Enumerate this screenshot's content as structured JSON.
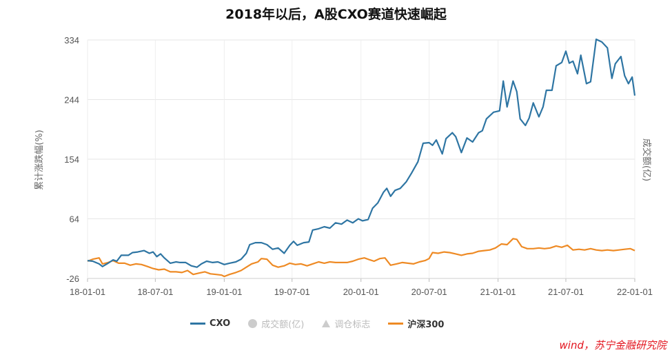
{
  "title": "2018年以后，A股CXO赛道快速崛起",
  "source": "wind，苏宁金融研究院",
  "chart_data": {
    "type": "line",
    "ylabel_left": "累计涨跌幅(%)",
    "ylabel_right": "成交额(亿)",
    "yticks": [
      -26,
      64,
      154,
      244,
      334
    ],
    "ylim": [
      -26,
      334
    ],
    "xticks": [
      "18-01-01",
      "18-07-01",
      "19-01-01",
      "19-07-01",
      "20-01-01",
      "20-07-01",
      "21-01-01",
      "21-07-01",
      "22-01-01"
    ],
    "xlim": [
      "2018-01-01",
      "2022-01-01"
    ],
    "grid": true,
    "legend_position": "bottom",
    "legend": [
      {
        "name": "CXO",
        "color": "#2e75a3",
        "symbol": "line",
        "active": true
      },
      {
        "name": "成交额(亿)",
        "color": "#cccccc",
        "symbol": "circle",
        "active": false
      },
      {
        "name": "调仓标志",
        "color": "#cccccc",
        "symbol": "triangle",
        "active": false
      },
      {
        "name": "沪深300",
        "color": "#ee8a24",
        "symbol": "line",
        "active": true
      }
    ],
    "series": [
      {
        "name": "CXO",
        "color": "#2e75a3",
        "points": [
          [
            "2018-01-01",
            1
          ],
          [
            "2018-01-15",
            0
          ],
          [
            "2018-02-01",
            -4
          ],
          [
            "2018-02-10",
            -8
          ],
          [
            "2018-02-25",
            -3
          ],
          [
            "2018-03-10",
            2
          ],
          [
            "2018-03-20",
            0
          ],
          [
            "2018-04-01",
            9
          ],
          [
            "2018-04-20",
            9
          ],
          [
            "2018-05-01",
            13
          ],
          [
            "2018-05-15",
            14
          ],
          [
            "2018-06-01",
            16
          ],
          [
            "2018-06-15",
            12
          ],
          [
            "2018-06-25",
            14
          ],
          [
            "2018-07-05",
            7
          ],
          [
            "2018-07-15",
            11
          ],
          [
            "2018-07-25",
            5
          ],
          [
            "2018-08-10",
            -3
          ],
          [
            "2018-08-25",
            -1
          ],
          [
            "2018-09-05",
            -2
          ],
          [
            "2018-09-20",
            -2
          ],
          [
            "2018-10-05",
            -7
          ],
          [
            "2018-10-20",
            -9
          ],
          [
            "2018-11-01",
            -4
          ],
          [
            "2018-11-15",
            0
          ],
          [
            "2018-12-01",
            -2
          ],
          [
            "2018-12-15",
            -1
          ],
          [
            "2019-01-01",
            -5
          ],
          [
            "2019-01-15",
            -3
          ],
          [
            "2019-02-01",
            -1
          ],
          [
            "2019-02-15",
            3
          ],
          [
            "2019-03-01",
            12
          ],
          [
            "2019-03-10",
            25
          ],
          [
            "2019-03-25",
            28
          ],
          [
            "2019-04-10",
            28
          ],
          [
            "2019-04-25",
            25
          ],
          [
            "2019-05-10",
            18
          ],
          [
            "2019-05-25",
            20
          ],
          [
            "2019-06-10",
            12
          ],
          [
            "2019-06-25",
            24
          ],
          [
            "2019-07-05",
            30
          ],
          [
            "2019-07-15",
            24
          ],
          [
            "2019-08-01",
            28
          ],
          [
            "2019-08-15",
            29
          ],
          [
            "2019-08-25",
            47
          ],
          [
            "2019-09-10",
            49
          ],
          [
            "2019-09-25",
            52
          ],
          [
            "2019-10-10",
            50
          ],
          [
            "2019-10-25",
            58
          ],
          [
            "2019-11-10",
            56
          ],
          [
            "2019-11-25",
            62
          ],
          [
            "2019-12-10",
            58
          ],
          [
            "2019-12-25",
            64
          ],
          [
            "2020-01-05",
            61
          ],
          [
            "2020-01-20",
            63
          ],
          [
            "2020-02-01",
            80
          ],
          [
            "2020-02-15",
            88
          ],
          [
            "2020-03-01",
            104
          ],
          [
            "2020-03-10",
            110
          ],
          [
            "2020-03-20",
            98
          ],
          [
            "2020-04-01",
            107
          ],
          [
            "2020-04-15",
            110
          ],
          [
            "2020-05-01",
            120
          ],
          [
            "2020-05-15",
            133
          ],
          [
            "2020-06-01",
            150
          ],
          [
            "2020-06-15",
            178
          ],
          [
            "2020-07-01",
            179
          ],
          [
            "2020-07-10",
            175
          ],
          [
            "2020-07-20",
            183
          ],
          [
            "2020-08-05",
            162
          ],
          [
            "2020-08-15",
            185
          ],
          [
            "2020-09-01",
            194
          ],
          [
            "2020-09-10",
            188
          ],
          [
            "2020-09-25",
            164
          ],
          [
            "2020-10-10",
            186
          ],
          [
            "2020-10-25",
            180
          ],
          [
            "2020-11-10",
            194
          ],
          [
            "2020-11-20",
            197
          ],
          [
            "2020-12-01",
            215
          ],
          [
            "2020-12-20",
            225
          ],
          [
            "2021-01-05",
            227
          ],
          [
            "2021-01-15",
            272
          ],
          [
            "2021-01-25",
            233
          ],
          [
            "2021-02-10",
            272
          ],
          [
            "2021-02-20",
            256
          ],
          [
            "2021-03-01",
            215
          ],
          [
            "2021-03-15",
            205
          ],
          [
            "2021-03-25",
            216
          ],
          [
            "2021-04-05",
            239
          ],
          [
            "2021-04-20",
            218
          ],
          [
            "2021-05-01",
            233
          ],
          [
            "2021-05-10",
            258
          ],
          [
            "2021-05-25",
            258
          ],
          [
            "2021-06-05",
            295
          ],
          [
            "2021-06-20",
            300
          ],
          [
            "2021-07-01",
            317
          ],
          [
            "2021-07-10",
            299
          ],
          [
            "2021-07-20",
            302
          ],
          [
            "2021-08-01",
            283
          ],
          [
            "2021-08-10",
            311
          ],
          [
            "2021-08-25",
            268
          ],
          [
            "2021-09-05",
            271
          ],
          [
            "2021-09-20",
            335
          ],
          [
            "2021-10-05",
            331
          ],
          [
            "2021-10-20",
            322
          ],
          [
            "2021-11-01",
            276
          ],
          [
            "2021-11-10",
            298
          ],
          [
            "2021-11-25",
            309
          ],
          [
            "2021-12-05",
            280
          ],
          [
            "2021-12-15",
            268
          ],
          [
            "2021-12-25",
            278
          ],
          [
            "2022-01-01",
            250
          ]
        ]
      },
      {
        "name": "沪深300",
        "color": "#ee8a24",
        "points": [
          [
            "2018-01-01",
            0
          ],
          [
            "2018-01-15",
            3
          ],
          [
            "2018-02-01",
            5
          ],
          [
            "2018-02-10",
            -4
          ],
          [
            "2018-02-25",
            -2
          ],
          [
            "2018-03-10",
            1
          ],
          [
            "2018-03-25",
            -3
          ],
          [
            "2018-04-10",
            -3
          ],
          [
            "2018-04-25",
            -6
          ],
          [
            "2018-05-10",
            -4
          ],
          [
            "2018-05-25",
            -5
          ],
          [
            "2018-06-10",
            -8
          ],
          [
            "2018-06-25",
            -11
          ],
          [
            "2018-07-10",
            -13
          ],
          [
            "2018-07-25",
            -12
          ],
          [
            "2018-08-10",
            -16
          ],
          [
            "2018-08-25",
            -16
          ],
          [
            "2018-09-10",
            -17
          ],
          [
            "2018-09-25",
            -14
          ],
          [
            "2018-10-10",
            -20
          ],
          [
            "2018-10-25",
            -18
          ],
          [
            "2018-11-10",
            -16
          ],
          [
            "2018-11-25",
            -19
          ],
          [
            "2018-12-10",
            -20
          ],
          [
            "2018-12-25",
            -21
          ],
          [
            "2019-01-01",
            -23
          ],
          [
            "2019-01-15",
            -20
          ],
          [
            "2019-02-01",
            -17
          ],
          [
            "2019-02-15",
            -14
          ],
          [
            "2019-03-01",
            -9
          ],
          [
            "2019-03-15",
            -4
          ],
          [
            "2019-04-01",
            -1
          ],
          [
            "2019-04-10",
            4
          ],
          [
            "2019-04-25",
            3
          ],
          [
            "2019-05-10",
            -6
          ],
          [
            "2019-05-25",
            -9
          ],
          [
            "2019-06-10",
            -7
          ],
          [
            "2019-06-25",
            -3
          ],
          [
            "2019-07-10",
            -5
          ],
          [
            "2019-07-25",
            -4
          ],
          [
            "2019-08-10",
            -7
          ],
          [
            "2019-08-25",
            -4
          ],
          [
            "2019-09-10",
            -1
          ],
          [
            "2019-09-25",
            -3
          ],
          [
            "2019-10-10",
            -1
          ],
          [
            "2019-10-25",
            -2
          ],
          [
            "2019-11-10",
            -2
          ],
          [
            "2019-11-25",
            -2
          ],
          [
            "2019-12-10",
            0
          ],
          [
            "2019-12-25",
            3
          ],
          [
            "2020-01-10",
            5
          ],
          [
            "2020-01-25",
            2
          ],
          [
            "2020-02-05",
            0
          ],
          [
            "2020-02-20",
            4
          ],
          [
            "2020-03-05",
            5
          ],
          [
            "2020-03-20",
            -6
          ],
          [
            "2020-04-05",
            -4
          ],
          [
            "2020-04-20",
            -2
          ],
          [
            "2020-05-05",
            -3
          ],
          [
            "2020-05-20",
            -4
          ],
          [
            "2020-06-05",
            -1
          ],
          [
            "2020-06-20",
            1
          ],
          [
            "2020-07-01",
            4
          ],
          [
            "2020-07-10",
            13
          ],
          [
            "2020-07-25",
            12
          ],
          [
            "2020-08-10",
            14
          ],
          [
            "2020-08-25",
            13
          ],
          [
            "2020-09-10",
            11
          ],
          [
            "2020-09-25",
            9
          ],
          [
            "2020-10-10",
            11
          ],
          [
            "2020-10-25",
            12
          ],
          [
            "2020-11-10",
            15
          ],
          [
            "2020-11-25",
            16
          ],
          [
            "2020-12-10",
            17
          ],
          [
            "2020-12-25",
            20
          ],
          [
            "2021-01-10",
            26
          ],
          [
            "2021-01-25",
            25
          ],
          [
            "2021-02-10",
            34
          ],
          [
            "2021-02-20",
            33
          ],
          [
            "2021-03-05",
            22
          ],
          [
            "2021-03-20",
            19
          ],
          [
            "2021-04-05",
            19
          ],
          [
            "2021-04-20",
            20
          ],
          [
            "2021-05-05",
            19
          ],
          [
            "2021-05-20",
            20
          ],
          [
            "2021-06-05",
            23
          ],
          [
            "2021-06-20",
            21
          ],
          [
            "2021-07-05",
            24
          ],
          [
            "2021-07-20",
            17
          ],
          [
            "2021-08-05",
            18
          ],
          [
            "2021-08-20",
            17
          ],
          [
            "2021-09-05",
            19
          ],
          [
            "2021-09-20",
            17
          ],
          [
            "2021-10-05",
            16
          ],
          [
            "2021-10-20",
            17
          ],
          [
            "2021-11-05",
            16
          ],
          [
            "2021-11-20",
            17
          ],
          [
            "2021-12-05",
            18
          ],
          [
            "2021-12-20",
            19
          ],
          [
            "2022-01-01",
            16
          ]
        ]
      }
    ]
  }
}
